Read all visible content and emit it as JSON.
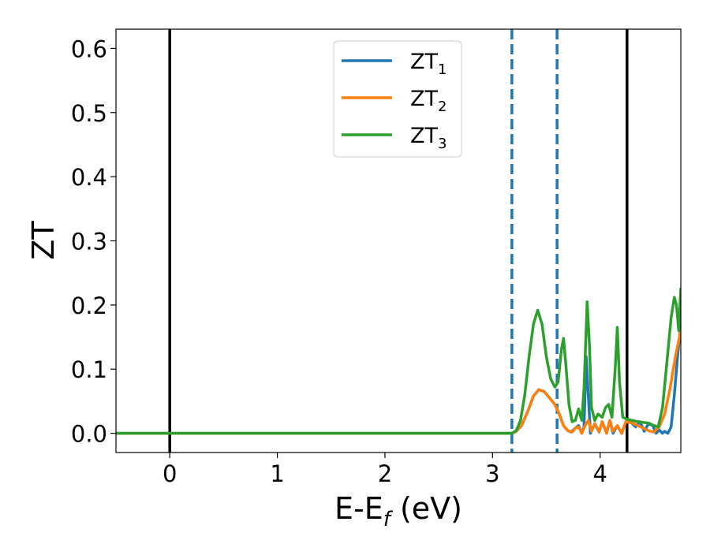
{
  "chart_data": {
    "type": "line",
    "title": "",
    "xlabel": {
      "main": "E-E",
      "sub": "f",
      "tail": " (eV)"
    },
    "ylabel": "ZT",
    "xlim": [
      -0.5,
      4.75
    ],
    "ylim": [
      -0.03,
      0.63
    ],
    "x_ticks": [
      0,
      1,
      2,
      3,
      4
    ],
    "x_tick_labels": [
      "0",
      "1",
      "2",
      "3",
      "4"
    ],
    "y_ticks": [
      0.0,
      0.1,
      0.2,
      0.3,
      0.4,
      0.5,
      0.6
    ],
    "y_tick_labels": [
      "0.0",
      "0.1",
      "0.2",
      "0.3",
      "0.4",
      "0.5",
      "0.6"
    ],
    "grid": false,
    "legend_position": "top-center",
    "vertical_lines": [
      {
        "x": 0.0,
        "style": "solid",
        "color": "#000000"
      },
      {
        "x": 4.25,
        "style": "solid",
        "color": "#000000"
      },
      {
        "x": 3.18,
        "style": "dashed",
        "color": "#1f77b4"
      },
      {
        "x": 3.6,
        "style": "dashed",
        "color": "#1f77b4"
      }
    ],
    "series": [
      {
        "name": "ZT",
        "name_sub": "1",
        "color": "#1f77b4",
        "points": [
          [
            -0.5,
            0
          ],
          [
            3.18,
            0
          ],
          [
            3.22,
            0.003
          ],
          [
            3.27,
            0.012
          ],
          [
            3.33,
            0.035
          ],
          [
            3.38,
            0.058
          ],
          [
            3.43,
            0.068
          ],
          [
            3.48,
            0.065
          ],
          [
            3.53,
            0.055
          ],
          [
            3.58,
            0.045
          ],
          [
            3.62,
            0.03
          ],
          [
            3.66,
            0.012
          ],
          [
            3.7,
            0.004
          ],
          [
            3.73,
            0.002
          ],
          [
            3.77,
            0.008
          ],
          [
            3.8,
            0.012
          ],
          [
            3.83,
            0.0
          ],
          [
            3.85,
            0.01
          ],
          [
            3.87,
            0.12
          ],
          [
            3.89,
            0.06
          ],
          [
            3.91,
            0.0
          ],
          [
            3.95,
            0.015
          ],
          [
            3.99,
            0.002
          ],
          [
            4.02,
            0.018
          ],
          [
            4.06,
            0.0
          ],
          [
            4.09,
            0.02
          ],
          [
            4.12,
            0.0
          ],
          [
            4.16,
            0.012
          ],
          [
            4.2,
            0.0
          ],
          [
            4.24,
            0.018
          ],
          [
            4.28,
            0.018
          ],
          [
            4.33,
            0.01
          ],
          [
            4.37,
            0.018
          ],
          [
            4.41,
            0.003
          ],
          [
            4.45,
            0.015
          ],
          [
            4.49,
            0.012
          ],
          [
            4.52,
            0.0
          ],
          [
            4.55,
            0.005
          ],
          [
            4.58,
            0.0
          ],
          [
            4.6,
            0.003
          ],
          [
            4.63,
            0.0
          ],
          [
            4.66,
            0.01
          ],
          [
            4.69,
            0.06
          ],
          [
            4.72,
            0.12
          ],
          [
            4.75,
            0.17
          ]
        ]
      },
      {
        "name": "ZT",
        "name_sub": "2",
        "color": "#ff7f0e",
        "points": [
          [
            -0.5,
            0
          ],
          [
            3.18,
            0
          ],
          [
            3.22,
            0.003
          ],
          [
            3.27,
            0.012
          ],
          [
            3.33,
            0.035
          ],
          [
            3.38,
            0.058
          ],
          [
            3.43,
            0.068
          ],
          [
            3.48,
            0.065
          ],
          [
            3.53,
            0.055
          ],
          [
            3.58,
            0.045
          ],
          [
            3.62,
            0.03
          ],
          [
            3.66,
            0.012
          ],
          [
            3.7,
            0.004
          ],
          [
            3.74,
            0.002
          ],
          [
            3.77,
            0.008
          ],
          [
            3.8,
            0.01
          ],
          [
            3.83,
            0.0
          ],
          [
            3.86,
            0.012
          ],
          [
            3.89,
            0.02
          ],
          [
            3.92,
            0.003
          ],
          [
            3.95,
            0.015
          ],
          [
            3.99,
            0.002
          ],
          [
            4.02,
            0.018
          ],
          [
            4.06,
            0.0
          ],
          [
            4.09,
            0.02
          ],
          [
            4.12,
            0.003
          ],
          [
            4.16,
            0.012
          ],
          [
            4.2,
            0.0
          ],
          [
            4.24,
            0.018
          ],
          [
            4.3,
            0.016
          ],
          [
            4.35,
            0.012
          ],
          [
            4.4,
            0.008
          ],
          [
            4.45,
            0.004
          ],
          [
            4.5,
            0.002
          ],
          [
            4.55,
            0.01
          ],
          [
            4.6,
            0.03
          ],
          [
            4.65,
            0.07
          ],
          [
            4.7,
            0.12
          ],
          [
            4.75,
            0.16
          ]
        ]
      },
      {
        "name": "ZT",
        "name_sub": "3",
        "color": "#2ca02c",
        "points": [
          [
            -0.5,
            0
          ],
          [
            3.18,
            0
          ],
          [
            3.22,
            0.004
          ],
          [
            3.26,
            0.02
          ],
          [
            3.3,
            0.06
          ],
          [
            3.34,
            0.12
          ],
          [
            3.38,
            0.17
          ],
          [
            3.42,
            0.192
          ],
          [
            3.46,
            0.17
          ],
          [
            3.5,
            0.12
          ],
          [
            3.54,
            0.085
          ],
          [
            3.58,
            0.072
          ],
          [
            3.61,
            0.08
          ],
          [
            3.64,
            0.13
          ],
          [
            3.66,
            0.148
          ],
          [
            3.68,
            0.11
          ],
          [
            3.71,
            0.045
          ],
          [
            3.74,
            0.018
          ],
          [
            3.77,
            0.02
          ],
          [
            3.8,
            0.038
          ],
          [
            3.83,
            0.02
          ],
          [
            3.85,
            0.07
          ],
          [
            3.88,
            0.205
          ],
          [
            3.9,
            0.14
          ],
          [
            3.92,
            0.04
          ],
          [
            3.95,
            0.02
          ],
          [
            3.98,
            0.03
          ],
          [
            4.02,
            0.025
          ],
          [
            4.05,
            0.04
          ],
          [
            4.08,
            0.045
          ],
          [
            4.11,
            0.025
          ],
          [
            4.14,
            0.1
          ],
          [
            4.16,
            0.165
          ],
          [
            4.18,
            0.08
          ],
          [
            4.21,
            0.025
          ],
          [
            4.25,
            0.022
          ],
          [
            4.3,
            0.02
          ],
          [
            4.35,
            0.018
          ],
          [
            4.4,
            0.017
          ],
          [
            4.45,
            0.016
          ],
          [
            4.5,
            0.012
          ],
          [
            4.54,
            0.01
          ],
          [
            4.58,
            0.04
          ],
          [
            4.62,
            0.11
          ],
          [
            4.66,
            0.18
          ],
          [
            4.69,
            0.212
          ],
          [
            4.71,
            0.2
          ],
          [
            4.73,
            0.16
          ],
          [
            4.75,
            0.225
          ]
        ]
      }
    ]
  }
}
